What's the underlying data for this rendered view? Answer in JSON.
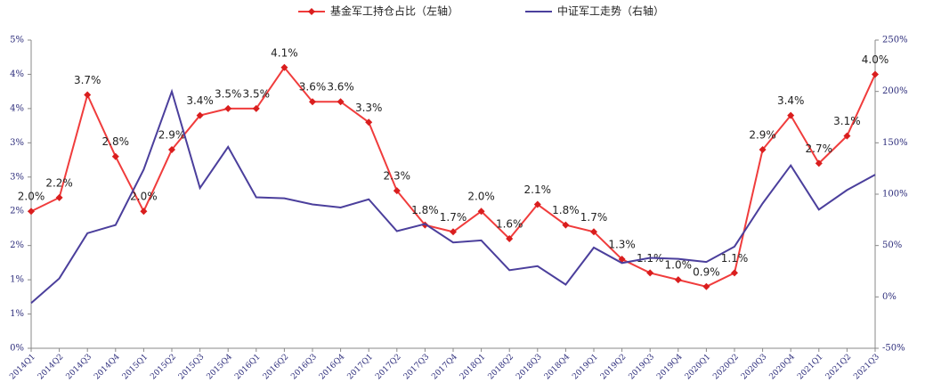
{
  "chart_data": {
    "type": "line",
    "categories": [
      "2014Q1",
      "2014Q2",
      "2014Q3",
      "2014Q4",
      "2015Q1",
      "2015Q2",
      "2015Q3",
      "2015Q4",
      "2016Q1",
      "2016Q2",
      "2016Q3",
      "2016Q4",
      "2017Q1",
      "2017Q2",
      "2017Q3",
      "2017Q4",
      "2018Q1",
      "2018Q2",
      "2018Q3",
      "2018Q4",
      "2019Q1",
      "2019Q2",
      "2019Q3",
      "2019Q4",
      "2020Q1",
      "2020Q2",
      "2020Q3",
      "2020Q4",
      "2021Q1",
      "2021Q2",
      "2021Q3"
    ],
    "series": [
      {
        "name": "基金军工持仓占比（左轴）",
        "color": "#f03c3c",
        "values": [
          2.0,
          2.2,
          3.7,
          2.8,
          2.0,
          2.9,
          3.4,
          3.5,
          3.5,
          4.1,
          3.6,
          3.6,
          3.3,
          2.3,
          1.8,
          1.7,
          2.0,
          1.6,
          2.1,
          1.8,
          1.7,
          1.3,
          1.1,
          1.0,
          0.9,
          1.1,
          2.9,
          3.4,
          2.7,
          3.1,
          4.0
        ],
        "value_labels": [
          "2.0%",
          "2.2%",
          "3.7%",
          "2.8%",
          "2.0%",
          "2.9%",
          "3.4%",
          "3.5%",
          "3.5%",
          "4.1%",
          "3.6%",
          "3.6%",
          "3.3%",
          "2.3%",
          "1.8%",
          "1.7%",
          "2.0%",
          "1.6%",
          "2.1%",
          "1.8%",
          "1.7%",
          "1.3%",
          "1.1%",
          "1.0%",
          "0.9%",
          "1.1%",
          "2.9%",
          "3.4%",
          "2.7%",
          "3.1%",
          "4.0%"
        ]
      },
      {
        "name": "中证军工走势（右轴）",
        "color": "#4b3f9c",
        "axis": "y2",
        "values": [
          -6,
          18,
          62,
          70,
          124,
          200,
          106,
          146,
          97,
          96,
          90,
          87,
          95,
          64,
          71,
          53,
          55,
          26,
          30,
          12,
          48,
          33,
          38,
          37,
          34,
          49,
          91,
          128,
          85,
          104,
          119
        ]
      }
    ],
    "ylim": [
      0,
      4.5
    ],
    "yticks": [
      {
        "value": 0,
        "label": "0%"
      },
      {
        "value": 0.5,
        "label": "1%"
      },
      {
        "value": 1,
        "label": "1%"
      },
      {
        "value": 1.5,
        "label": "2%"
      },
      {
        "value": 2,
        "label": "2%"
      },
      {
        "value": 2.5,
        "label": "3%"
      },
      {
        "value": 3,
        "label": "3%"
      },
      {
        "value": 3.5,
        "label": "4%"
      },
      {
        "value": 4,
        "label": "4%"
      },
      {
        "value": 4.5,
        "label": "5%"
      }
    ],
    "y2lim": [
      -50,
      250
    ],
    "y2ticks": [
      {
        "value": -50,
        "label": "-50%"
      },
      {
        "value": 0,
        "label": "0%"
      },
      {
        "value": 50,
        "label": "50%"
      },
      {
        "value": 100,
        "label": "100%"
      },
      {
        "value": 150,
        "label": "150%"
      },
      {
        "value": 200,
        "label": "200%"
      },
      {
        "value": 250,
        "label": "250%"
      }
    ]
  }
}
